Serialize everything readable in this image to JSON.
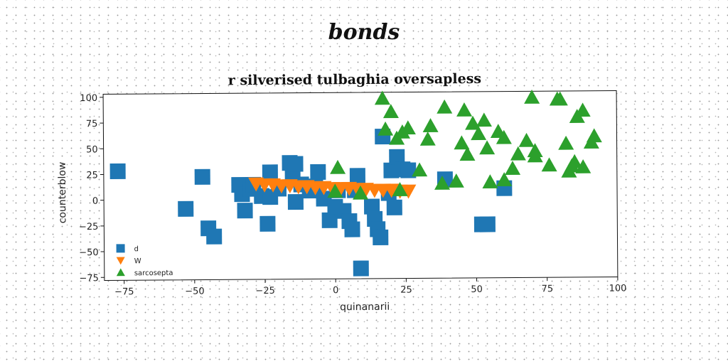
{
  "page": {
    "title": "bonds"
  },
  "chart_data": {
    "type": "scatter",
    "title": "r silverised tulbaghia oversapless",
    "xlabel": "quinanarii",
    "ylabel": "counterblow",
    "xlim": [
      -82,
      100
    ],
    "ylim": [
      -78,
      103
    ],
    "xticks": [
      -75,
      -50,
      -25,
      0,
      25,
      50,
      75,
      100
    ],
    "yticks": [
      100,
      75,
      50,
      25,
      0,
      -25,
      -50,
      -75
    ],
    "grid": false,
    "legend": "lower-left",
    "series": [
      {
        "name": "d",
        "marker": "square",
        "color": "#1f77b4",
        "points": [
          [
            -77,
            28
          ],
          [
            -47,
            22
          ],
          [
            -53,
            -9
          ],
          [
            -45,
            -28
          ],
          [
            -43,
            -36
          ],
          [
            -34,
            14
          ],
          [
            -33,
            5
          ],
          [
            -32,
            -11
          ],
          [
            -30,
            10
          ],
          [
            -29,
            14
          ],
          [
            -26,
            3
          ],
          [
            -24,
            -24
          ],
          [
            -23,
            26
          ],
          [
            -23,
            2
          ],
          [
            -20,
            10
          ],
          [
            -16,
            35
          ],
          [
            -15,
            25
          ],
          [
            -14,
            34
          ],
          [
            -14,
            -3
          ],
          [
            -12,
            14
          ],
          [
            -9,
            8
          ],
          [
            -7,
            12
          ],
          [
            -6,
            26
          ],
          [
            -4,
            0
          ],
          [
            -2,
            -21
          ],
          [
            0,
            -8
          ],
          [
            1,
            8
          ],
          [
            3,
            -12
          ],
          [
            5,
            -22
          ],
          [
            6,
            -30
          ],
          [
            7,
            8
          ],
          [
            8,
            22
          ],
          [
            9,
            -68
          ],
          [
            13,
            -8
          ],
          [
            14,
            -20
          ],
          [
            15,
            -30
          ],
          [
            16,
            -38
          ],
          [
            17,
            60
          ],
          [
            19,
            5
          ],
          [
            20,
            27
          ],
          [
            21,
            -9
          ],
          [
            22,
            40
          ],
          [
            24,
            28
          ],
          [
            26,
            27
          ],
          [
            39,
            18
          ],
          [
            52,
            -26
          ],
          [
            54,
            -26
          ],
          [
            60,
            9
          ]
        ]
      },
      {
        "name": "W",
        "marker": "triangle-down",
        "color": "#ff7f0e",
        "points": [
          [
            -28,
            15
          ],
          [
            -25,
            14
          ],
          [
            -22,
            14
          ],
          [
            -19,
            13
          ],
          [
            -16,
            13
          ],
          [
            -13,
            12
          ],
          [
            -10,
            12
          ],
          [
            -7,
            11
          ],
          [
            -4,
            11
          ],
          [
            -1,
            10
          ],
          [
            2,
            10
          ],
          [
            5,
            10
          ],
          [
            8,
            9
          ],
          [
            11,
            9
          ],
          [
            14,
            8
          ],
          [
            17,
            8
          ],
          [
            20,
            8
          ],
          [
            23,
            7
          ],
          [
            26,
            7
          ]
        ]
      },
      {
        "name": "sarcosepta",
        "marker": "triangle-up",
        "color": "#2ca02c",
        "points": [
          [
            1,
            30
          ],
          [
            0,
            7
          ],
          [
            9,
            5
          ],
          [
            18,
            67
          ],
          [
            17,
            97
          ],
          [
            20,
            84
          ],
          [
            22,
            58
          ],
          [
            24,
            64
          ],
          [
            26,
            68
          ],
          [
            23,
            8
          ],
          [
            30,
            27
          ],
          [
            33,
            57
          ],
          [
            34,
            70
          ],
          [
            38,
            14
          ],
          [
            39,
            88
          ],
          [
            43,
            16
          ],
          [
            46,
            85
          ],
          [
            45,
            53
          ],
          [
            47,
            42
          ],
          [
            49,
            72
          ],
          [
            51,
            62
          ],
          [
            53,
            75
          ],
          [
            54,
            48
          ],
          [
            55,
            15
          ],
          [
            58,
            64
          ],
          [
            60,
            58
          ],
          [
            60,
            17
          ],
          [
            63,
            28
          ],
          [
            65,
            42
          ],
          [
            68,
            55
          ],
          [
            71,
            45
          ],
          [
            71,
            40
          ],
          [
            70,
            97
          ],
          [
            76,
            31
          ],
          [
            79,
            95
          ],
          [
            80,
            95
          ],
          [
            82,
            52
          ],
          [
            83,
            25
          ],
          [
            84,
            30
          ],
          [
            85,
            34
          ],
          [
            86,
            78
          ],
          [
            88,
            29
          ],
          [
            88,
            84
          ],
          [
            91,
            53
          ],
          [
            92,
            59
          ]
        ]
      }
    ]
  }
}
